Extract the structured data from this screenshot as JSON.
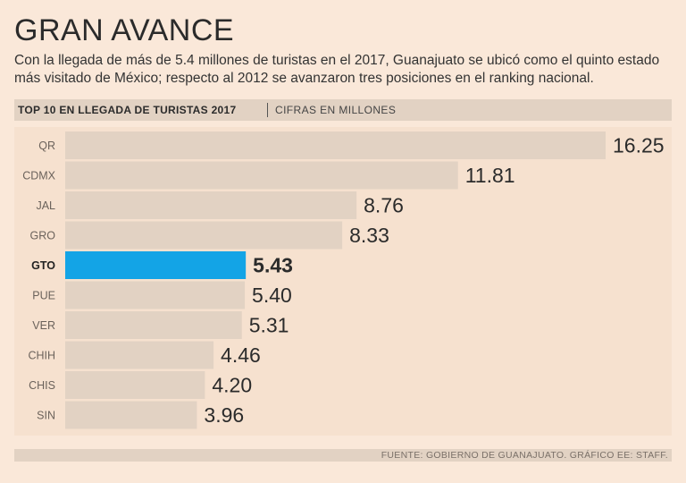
{
  "title": "GRAN AVANCE",
  "subtitle": "Con la llegada de más de 5.4 millones de turistas en el 2017, Guanajuato se ubicó como el quinto estado más visitado de México; respecto al 2012 se avanzaron tres posiciones en el ranking nacional.",
  "header": {
    "main": "TOP 10 EN LLEGADA DE TURISTAS 2017",
    "sub": "CIFRAS EN MILLONES"
  },
  "footer": "FUENTE: GOBIERNO DE GUANAJUATO. GRÁFICO EE: STAFF.",
  "colors": {
    "bar": "#e2d2c3",
    "highlight": "#13a4e6",
    "background": "#fae8d9"
  },
  "chart_data": {
    "type": "bar",
    "orientation": "horizontal",
    "categories": [
      "QR",
      "CDMX",
      "JAL",
      "GRO",
      "GTO",
      "PUE",
      "VER",
      "CHIH",
      "CHIS",
      "SIN"
    ],
    "values": [
      16.25,
      11.81,
      8.76,
      8.33,
      5.43,
      5.4,
      5.31,
      4.46,
      4.2,
      3.96
    ],
    "labels": [
      "16.25",
      "11.81",
      "8.76",
      "8.33",
      "5.43",
      "5.40",
      "5.31",
      "4.46",
      "4.20",
      "3.96"
    ],
    "highlight": "GTO",
    "xlim": [
      0,
      16.25
    ],
    "grid": false,
    "legend": "none"
  }
}
